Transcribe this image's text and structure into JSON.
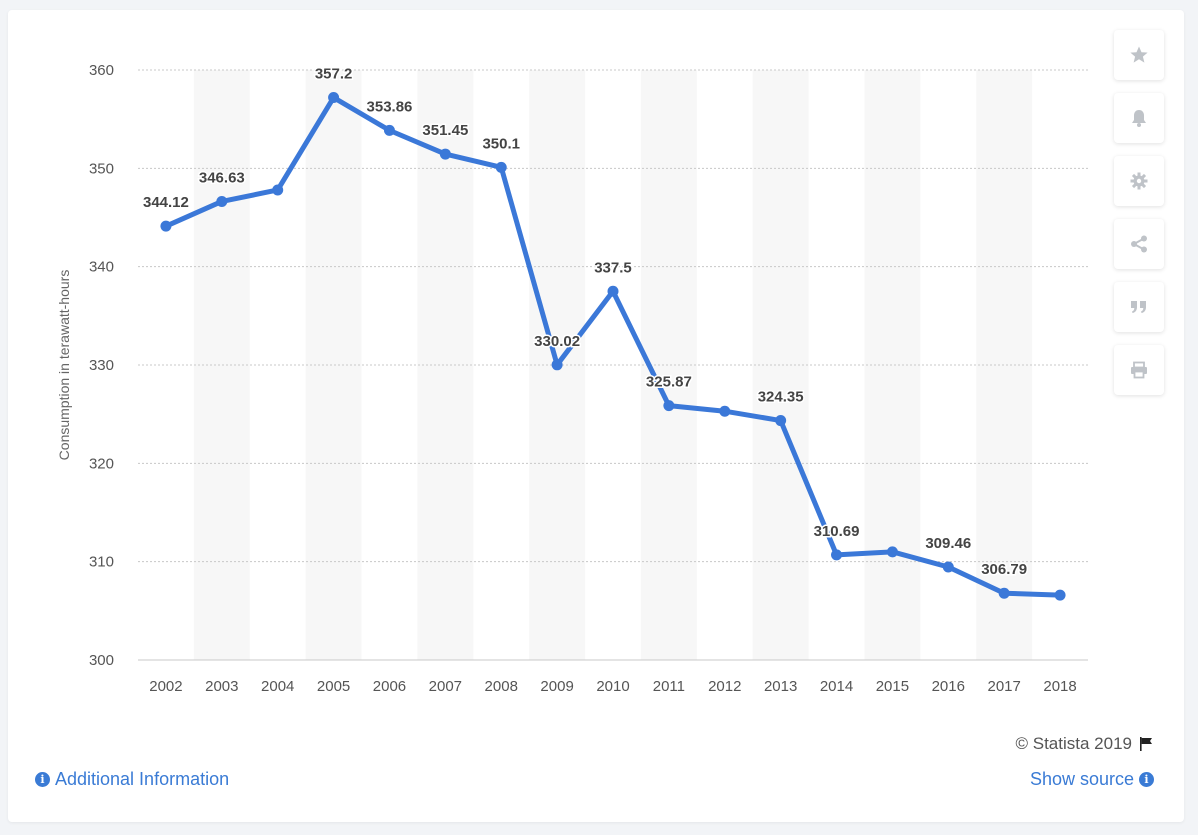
{
  "chart_data": {
    "type": "line",
    "x": [
      "2002",
      "2003",
      "2004",
      "2005",
      "2006",
      "2007",
      "2008",
      "2009",
      "2010",
      "2011",
      "2012",
      "2013",
      "2014",
      "2015",
      "2016",
      "2017",
      "2018"
    ],
    "series": [
      {
        "values": [
          344.12,
          346.63,
          347.8,
          357.2,
          353.86,
          351.45,
          350.1,
          330.02,
          337.5,
          325.87,
          325.3,
          324.35,
          310.69,
          311.0,
          309.46,
          306.79,
          306.6
        ],
        "labels": [
          "344.12",
          "346.63",
          "",
          "357.2",
          "353.86",
          "351.45",
          "350.1",
          "330.02",
          "337.5",
          "325.87",
          "",
          "324.35",
          "310.69",
          "",
          "309.46",
          "306.79",
          ""
        ],
        "color": "#3b78d8"
      }
    ],
    "ylabel": "Consumption in terawatt-hours",
    "xlabel": "",
    "ylim": [
      300,
      360
    ],
    "yticks": [
      300,
      310,
      320,
      330,
      340,
      350,
      360
    ],
    "grid": true,
    "legend": "none",
    "band_color": "#f7f7f7",
    "grid_color": "#c8c8c8"
  },
  "footer": {
    "copyright": "© Statista 2019",
    "additional_info": "Additional Information",
    "show_source": "Show source"
  },
  "toolbar": {
    "icons": [
      "star-icon",
      "bell-icon",
      "gear-icon",
      "share-icon",
      "quote-icon",
      "print-icon"
    ]
  },
  "colors": {
    "accent": "#3a7bd5",
    "icon_gray": "#bfc3c8"
  }
}
